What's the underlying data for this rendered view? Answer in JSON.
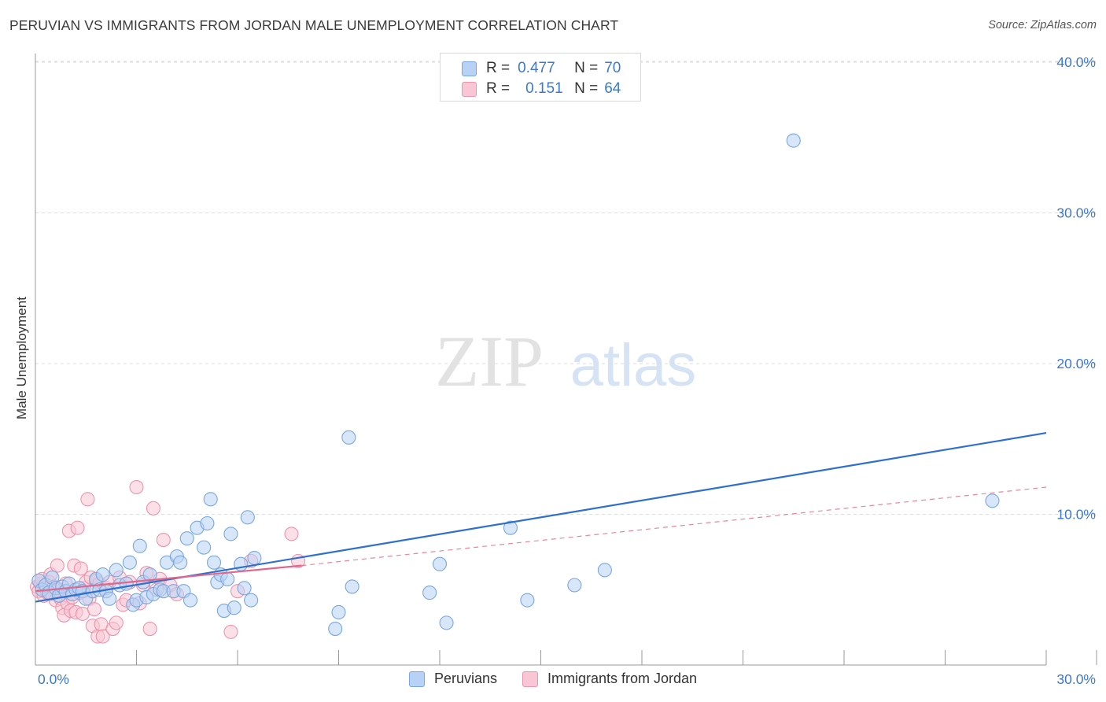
{
  "header": {
    "title": "PERUVIAN VS IMMIGRANTS FROM JORDAN MALE UNEMPLOYMENT CORRELATION CHART",
    "source": "Source: ZipAtlas.com"
  },
  "watermark": {
    "zip": "ZIP",
    "atlas": "atlas"
  },
  "legend_top": {
    "rows": [
      {
        "r_label": "R =",
        "r_value": "0.477",
        "n_label": "N =",
        "n_value": "70"
      },
      {
        "r_label": "R =",
        "r_value": "0.151",
        "n_label": "N =",
        "n_value": "64"
      }
    ]
  },
  "legend_bottom": {
    "items": [
      "Peruvians",
      "Immigrants from Jordan"
    ]
  },
  "colors": {
    "blue_fill": "#b7d2f4",
    "blue_stroke": "#7aa7e0",
    "blue_line": "#2f6fce",
    "pink_fill": "#f8c6d4",
    "pink_stroke": "#ee94ad",
    "pink_line": "#e0668a",
    "axis_text": "#3b78d0",
    "grid": "#dddddd"
  },
  "chart_data": {
    "type": "scatter",
    "title": "PERUVIAN VS IMMIGRANTS FROM JORDAN MALE UNEMPLOYMENT CORRELATION CHART",
    "xlabel": "",
    "ylabel": "Male Unemployment",
    "xlim": [
      0,
      30
    ],
    "ylim": [
      0,
      42
    ],
    "x_tick_labels": [
      {
        "value": 0,
        "label": "0.0%"
      },
      {
        "value": 30,
        "label": "30.0%"
      }
    ],
    "y_tick_labels": [
      {
        "value": 10,
        "label": "10.0%"
      },
      {
        "value": 20,
        "label": "20.0%"
      },
      {
        "value": 30,
        "label": "30.0%"
      },
      {
        "value": 40,
        "label": "40.0%"
      }
    ],
    "series": [
      {
        "name": "Peruvians",
        "R": 0.477,
        "N": 70,
        "trend": {
          "x": [
            0,
            30
          ],
          "y": [
            4.2,
            15.4
          ]
        },
        "points": [
          [
            0.1,
            5.6
          ],
          [
            0.2,
            5.0
          ],
          [
            0.3,
            5.3
          ],
          [
            0.4,
            4.8
          ],
          [
            0.5,
            5.8
          ],
          [
            0.6,
            5.1
          ],
          [
            0.7,
            4.6
          ],
          [
            0.8,
            5.2
          ],
          [
            0.9,
            4.9
          ],
          [
            1.0,
            5.4
          ],
          [
            1.1,
            4.7
          ],
          [
            1.2,
            5.0
          ],
          [
            1.3,
            5.1
          ],
          [
            1.4,
            4.9
          ],
          [
            1.5,
            4.4
          ],
          [
            1.7,
            4.9
          ],
          [
            1.8,
            5.7
          ],
          [
            1.9,
            5.0
          ],
          [
            2.0,
            6.0
          ],
          [
            2.1,
            4.9
          ],
          [
            2.2,
            4.4
          ],
          [
            2.4,
            6.3
          ],
          [
            2.5,
            5.3
          ],
          [
            2.7,
            5.4
          ],
          [
            2.8,
            6.8
          ],
          [
            2.9,
            4.0
          ],
          [
            3.0,
            4.3
          ],
          [
            3.1,
            7.9
          ],
          [
            3.2,
            5.5
          ],
          [
            3.3,
            4.5
          ],
          [
            3.4,
            6.0
          ],
          [
            3.5,
            4.7
          ],
          [
            3.7,
            5.0
          ],
          [
            3.8,
            4.9
          ],
          [
            3.9,
            6.8
          ],
          [
            4.1,
            4.9
          ],
          [
            4.2,
            7.2
          ],
          [
            4.3,
            6.8
          ],
          [
            4.4,
            4.9
          ],
          [
            4.5,
            8.4
          ],
          [
            4.6,
            4.3
          ],
          [
            4.8,
            9.1
          ],
          [
            5.0,
            7.8
          ],
          [
            5.1,
            9.4
          ],
          [
            5.2,
            11.0
          ],
          [
            5.3,
            6.8
          ],
          [
            5.4,
            5.5
          ],
          [
            5.5,
            6.0
          ],
          [
            5.6,
            3.6
          ],
          [
            5.7,
            5.7
          ],
          [
            5.8,
            8.7
          ],
          [
            5.9,
            3.8
          ],
          [
            6.1,
            6.7
          ],
          [
            6.2,
            5.1
          ],
          [
            6.3,
            9.8
          ],
          [
            6.4,
            4.3
          ],
          [
            6.5,
            7.1
          ],
          [
            8.9,
            2.4
          ],
          [
            9.0,
            3.5
          ],
          [
            9.3,
            15.1
          ],
          [
            9.4,
            5.2
          ],
          [
            11.7,
            4.8
          ],
          [
            12.0,
            6.7
          ],
          [
            12.2,
            2.8
          ],
          [
            14.1,
            9.1
          ],
          [
            14.6,
            4.3
          ],
          [
            16.0,
            5.3
          ],
          [
            16.9,
            6.3
          ],
          [
            22.5,
            34.8
          ],
          [
            28.4,
            10.9
          ]
        ]
      },
      {
        "name": "Immigrants from Jordan",
        "R": 0.151,
        "N": 64,
        "trend": {
          "x": [
            0,
            7.9
          ],
          "y": [
            4.9,
            6.6
          ]
        },
        "trend_ext": {
          "x": [
            7.9,
            30
          ],
          "y": [
            6.6,
            11.8
          ]
        },
        "points": [
          [
            0.05,
            5.2
          ],
          [
            0.1,
            4.9
          ],
          [
            0.15,
            5.4
          ],
          [
            0.2,
            5.7
          ],
          [
            0.25,
            4.6
          ],
          [
            0.3,
            5.1
          ],
          [
            0.35,
            4.8
          ],
          [
            0.4,
            5.5
          ],
          [
            0.45,
            6.0
          ],
          [
            0.5,
            4.7
          ],
          [
            0.55,
            5.2
          ],
          [
            0.6,
            4.3
          ],
          [
            0.65,
            6.6
          ],
          [
            0.7,
            5.0
          ],
          [
            0.75,
            4.4
          ],
          [
            0.8,
            3.8
          ],
          [
            0.85,
            3.3
          ],
          [
            0.9,
            5.4
          ],
          [
            0.95,
            4.1
          ],
          [
            1.0,
            8.9
          ],
          [
            1.05,
            3.6
          ],
          [
            1.1,
            4.5
          ],
          [
            1.15,
            6.6
          ],
          [
            1.2,
            3.5
          ],
          [
            1.25,
            9.1
          ],
          [
            1.3,
            4.8
          ],
          [
            1.35,
            6.4
          ],
          [
            1.4,
            3.4
          ],
          [
            1.45,
            5.1
          ],
          [
            1.5,
            5.5
          ],
          [
            1.55,
            11.0
          ],
          [
            1.6,
            4.4
          ],
          [
            1.65,
            5.8
          ],
          [
            1.7,
            2.6
          ],
          [
            1.75,
            3.7
          ],
          [
            1.8,
            5.6
          ],
          [
            1.85,
            1.9
          ],
          [
            1.9,
            5.4
          ],
          [
            1.95,
            2.7
          ],
          [
            2.0,
            1.9
          ],
          [
            2.1,
            5.1
          ],
          [
            2.2,
            5.5
          ],
          [
            2.3,
            2.4
          ],
          [
            2.4,
            2.8
          ],
          [
            2.5,
            5.8
          ],
          [
            2.6,
            4.0
          ],
          [
            2.7,
            4.3
          ],
          [
            2.8,
            5.5
          ],
          [
            3.0,
            11.8
          ],
          [
            3.1,
            4.1
          ],
          [
            3.2,
            5.3
          ],
          [
            3.3,
            6.1
          ],
          [
            3.4,
            2.4
          ],
          [
            3.5,
            10.4
          ],
          [
            3.6,
            5.0
          ],
          [
            3.7,
            5.7
          ],
          [
            3.8,
            8.3
          ],
          [
            4.0,
            5.3
          ],
          [
            4.2,
            4.7
          ],
          [
            5.8,
            2.2
          ],
          [
            6.0,
            4.9
          ],
          [
            6.4,
            6.9
          ],
          [
            7.6,
            8.7
          ],
          [
            7.8,
            6.9
          ]
        ]
      }
    ]
  }
}
